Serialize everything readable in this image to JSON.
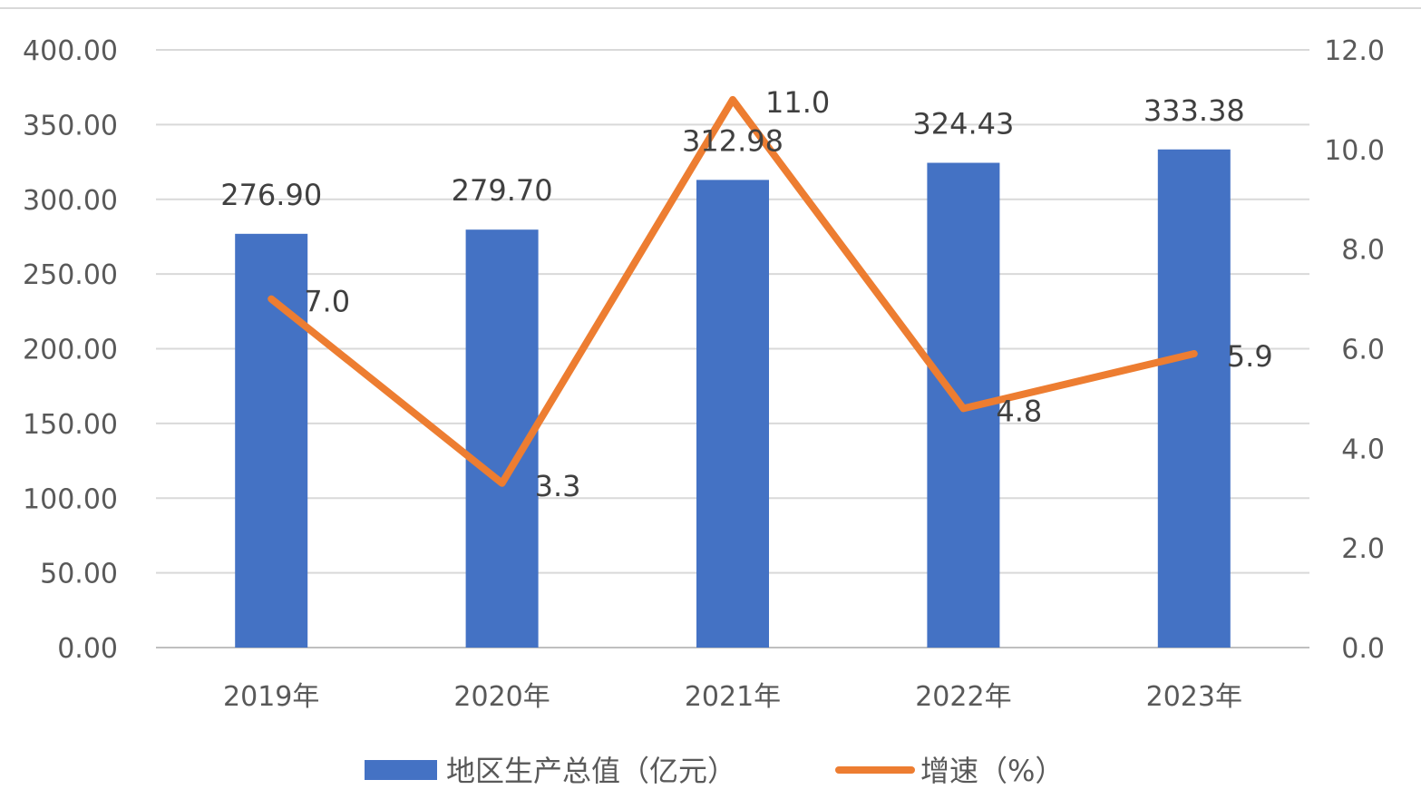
{
  "chart_data": {
    "type": "bar",
    "categories": [
      "2019年",
      "2020年",
      "2021年",
      "2022年",
      "2023年"
    ],
    "series": [
      {
        "name": "地区生产总值（亿元）",
        "type": "bar",
        "axis": "left",
        "values": [
          276.9,
          279.7,
          312.98,
          324.43,
          333.38
        ],
        "labels": [
          "276.90",
          "279.70",
          "312.98",
          "324.43",
          "333.38"
        ],
        "color": "#4472C4"
      },
      {
        "name": "增速（%）",
        "type": "line",
        "axis": "right",
        "values": [
          7.0,
          3.3,
          11.0,
          4.8,
          5.9
        ],
        "labels": [
          "7.0",
          "3.3",
          "11.0",
          "4.8",
          "5.9"
        ],
        "color": "#ED7D31"
      }
    ],
    "y_left": {
      "range": [
        0,
        400
      ],
      "ticks": [
        "0.00",
        "50.00",
        "100.00",
        "150.00",
        "200.00",
        "250.00",
        "300.00",
        "350.00",
        "400.00"
      ]
    },
    "y_right": {
      "range": [
        0,
        12
      ],
      "ticks": [
        "0.0",
        "2.0",
        "4.0",
        "6.0",
        "8.0",
        "10.0",
        "12.0"
      ]
    },
    "grid": true,
    "legend": "bottom"
  }
}
